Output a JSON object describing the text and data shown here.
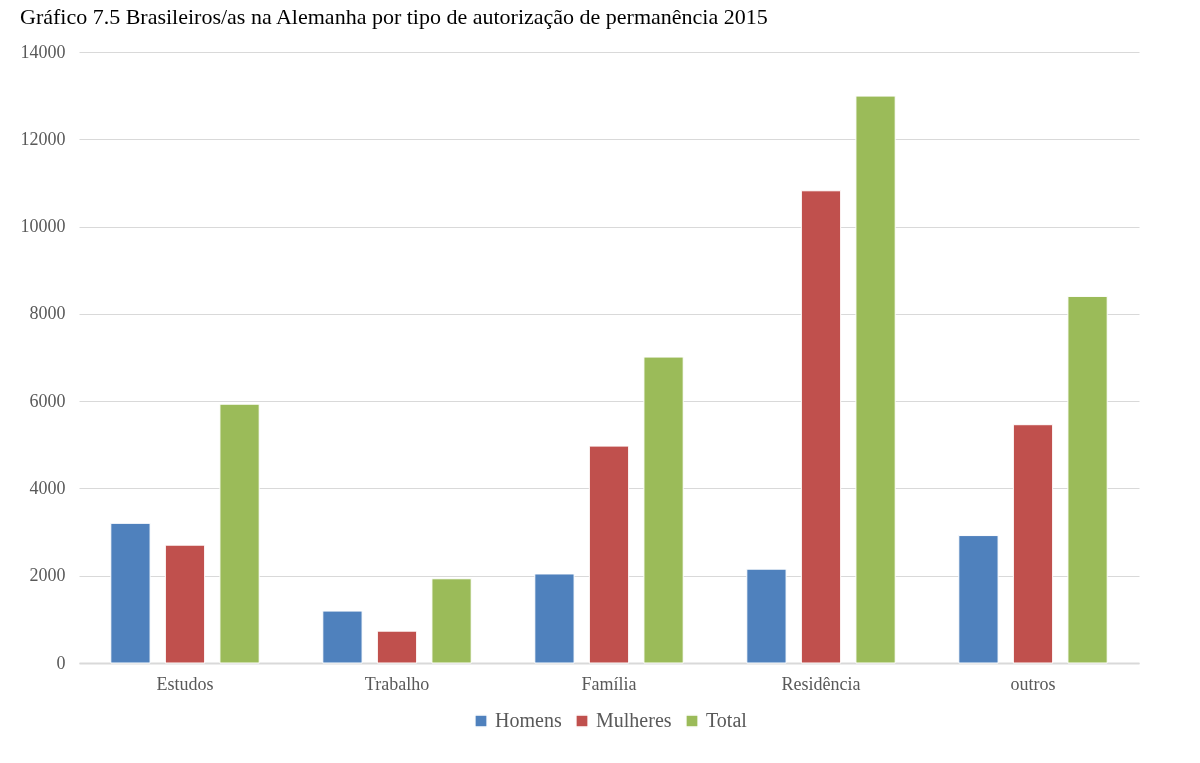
{
  "chart_data": {
    "type": "bar",
    "title": "Gráfico 7.5 Brasileiros/as na Alemanha por tipo de autorização de permanência 2015",
    "categories": [
      "Estudos",
      "Trabalho",
      "Família",
      "Residência",
      "outros"
    ],
    "series": [
      {
        "name": "Homens",
        "color": "#4f81bd",
        "values": [
          3200,
          1190,
          2040,
          2150,
          2920
        ]
      },
      {
        "name": "Mulheres",
        "color": "#c0504d",
        "values": [
          2700,
          730,
          4970,
          10820,
          5460
        ]
      },
      {
        "name": "Total",
        "color": "#9bbb59",
        "values": [
          5930,
          1930,
          7010,
          12990,
          8400
        ]
      }
    ],
    "ylim": [
      0,
      14000
    ],
    "yticks": [
      0,
      2000,
      4000,
      6000,
      8000,
      10000,
      12000,
      14000
    ],
    "grid": "y",
    "legend": "bottom"
  }
}
